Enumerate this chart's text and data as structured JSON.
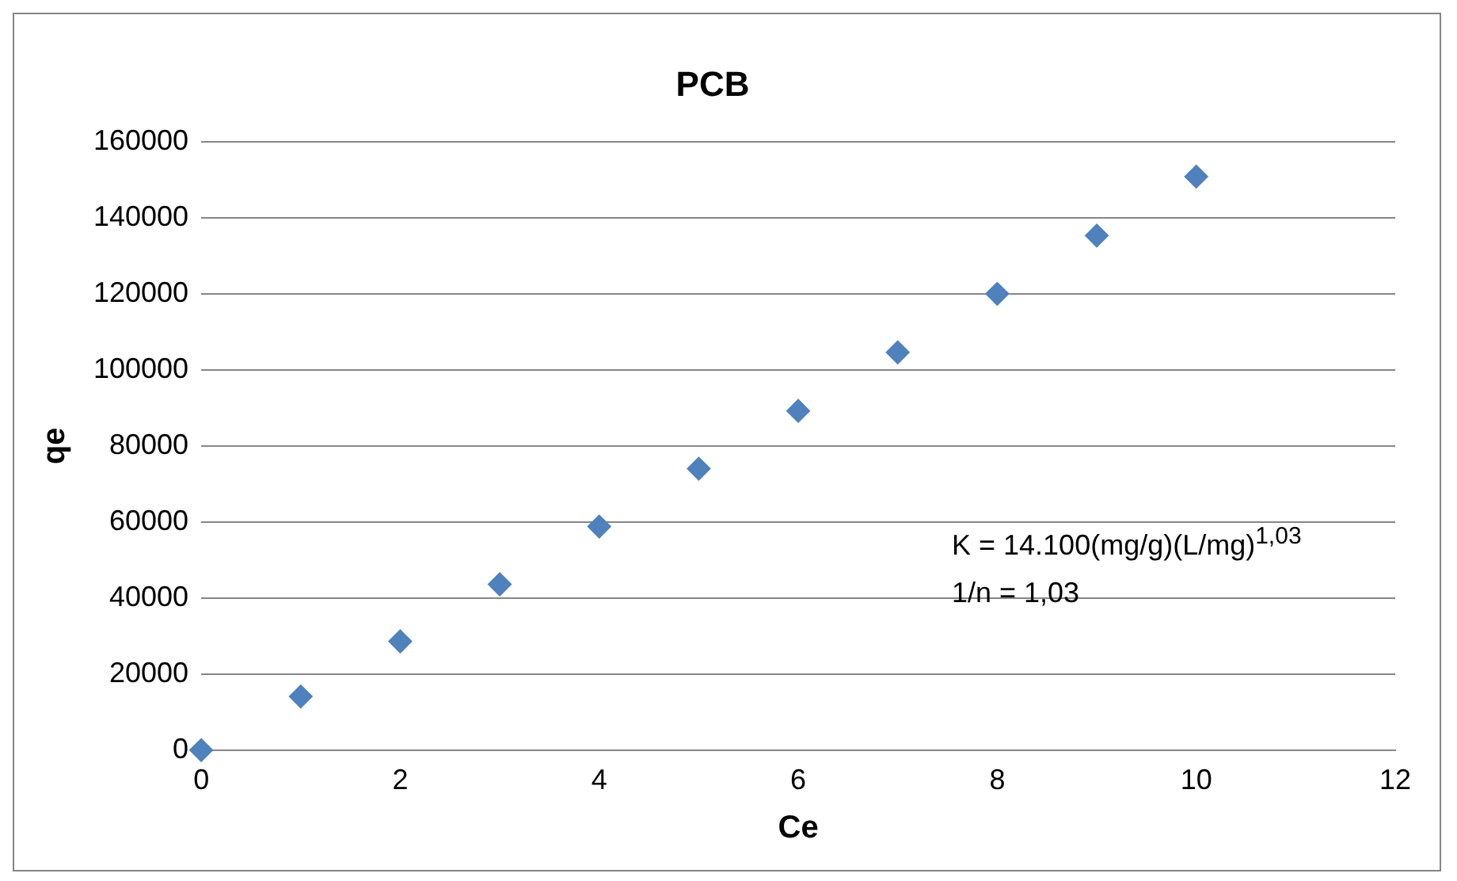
{
  "chart_data": {
    "type": "scatter",
    "title": "PCB",
    "xlabel": "Ce",
    "ylabel": "qe",
    "x": [
      0,
      1,
      2,
      3,
      4,
      5,
      6,
      7,
      8,
      9,
      10
    ],
    "series": [
      {
        "color": "#4f81bd",
        "values": [
          0,
          14100,
          28600,
          43600,
          58800,
          74000,
          89200,
          104600,
          120000,
          135300,
          150800
        ]
      }
    ],
    "xlim": [
      0,
      12
    ],
    "xticks": [
      0,
      2,
      4,
      6,
      8,
      10,
      12
    ],
    "ylim": [
      0,
      160000
    ],
    "yticks": [
      0,
      20000,
      40000,
      60000,
      80000,
      100000,
      120000,
      140000,
      160000
    ],
    "grid": "y",
    "legend": false,
    "marker": "diamond",
    "annotations": [
      "K = 14.100(mg/g)(L/mg)$^{1,03}$",
      "1/n = 1,03"
    ]
  }
}
